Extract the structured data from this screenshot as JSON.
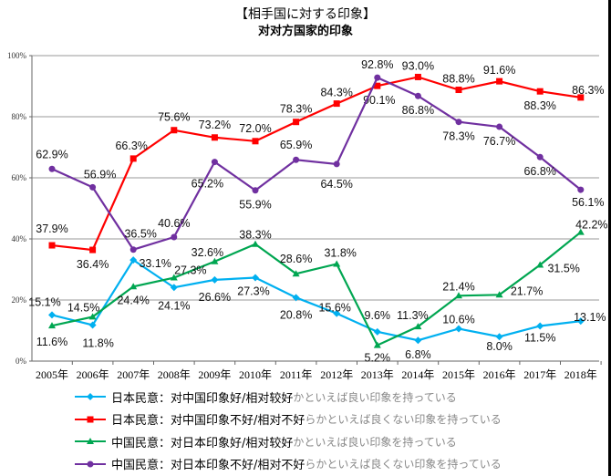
{
  "chart_data": {
    "type": "line",
    "title": "【相手国に対する印象】",
    "subtitle": "对对方国家的印象",
    "categories": [
      "2005年",
      "2006年",
      "2007年",
      "2008年",
      "2009年",
      "2010年",
      "2011年",
      "2012年",
      "2013年",
      "2014年",
      "2015年",
      "2016年",
      "2017年",
      "2018年"
    ],
    "ylim": [
      0,
      100
    ],
    "yticks": [
      "0%",
      "20%",
      "40%",
      "60%",
      "80%",
      "100%"
    ],
    "grid": true,
    "legend_placement": "bottom",
    "series": [
      {
        "name": "日本民意：对中国印象好/相对较好",
        "name_overlay": "かといえば良い印象を持っている",
        "color": "#00b0f0",
        "marker": "diamond",
        "values": [
          15.1,
          11.8,
          33.1,
          24.1,
          26.6,
          27.3,
          20.8,
          15.6,
          9.6,
          6.8,
          10.6,
          8.0,
          11.5,
          13.1
        ]
      },
      {
        "name": "日本民意：对中国印象不好/相对不好",
        "name_overlay": "らかといえば良くない印象を持っている",
        "color": "#ff0000",
        "marker": "square",
        "values": [
          37.9,
          36.4,
          66.3,
          75.6,
          73.2,
          72.0,
          78.3,
          84.3,
          90.1,
          93.0,
          88.8,
          91.6,
          88.3,
          86.3
        ]
      },
      {
        "name": "中国民意：对日本印象好/相对较好",
        "name_overlay": "かといえば良い印象を持っている",
        "color": "#00a651",
        "marker": "triangle",
        "values": [
          11.6,
          14.5,
          24.4,
          27.3,
          32.6,
          38.3,
          28.6,
          31.8,
          5.2,
          11.3,
          21.4,
          21.7,
          31.5,
          42.2
        ]
      },
      {
        "name": "中国民意：对日本印象不好/相对不好",
        "name_overlay": "らかといえば良くない印象を持っている",
        "color": "#7030a0",
        "marker": "circle",
        "values": [
          62.9,
          56.9,
          36.5,
          40.6,
          65.2,
          55.9,
          65.9,
          64.5,
          92.8,
          86.8,
          78.3,
          76.7,
          66.8,
          56.1
        ]
      }
    ]
  }
}
